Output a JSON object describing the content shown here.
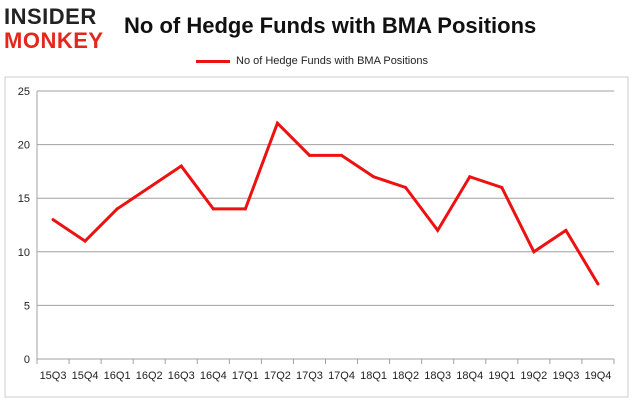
{
  "logo": {
    "line1": "INSIDER",
    "line2": "MONKEY"
  },
  "chart_data": {
    "type": "line",
    "title": "No of Hedge Funds with BMA Positions",
    "xlabel": "",
    "ylabel": "",
    "categories": [
      "15Q3",
      "15Q4",
      "16Q1",
      "16Q2",
      "16Q3",
      "16Q4",
      "17Q1",
      "17Q2",
      "17Q3",
      "17Q4",
      "18Q1",
      "18Q2",
      "18Q3",
      "18Q4",
      "19Q1",
      "19Q2",
      "19Q3",
      "19Q4"
    ],
    "series": [
      {
        "name": "No of Hedge Funds with BMA Positions",
        "color": "#ee1111",
        "values": [
          13,
          11,
          14,
          16,
          18,
          14,
          14,
          22,
          19,
          19,
          17,
          16,
          12,
          17,
          16,
          10,
          12,
          7
        ]
      }
    ],
    "yticks": [
      0,
      5,
      10,
      15,
      20,
      25
    ],
    "ylim": [
      0,
      25
    ],
    "grid": true,
    "legend": "top-center"
  }
}
